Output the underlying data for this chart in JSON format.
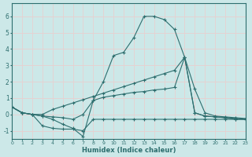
{
  "background_color": "#cce8e8",
  "grid_color": "#d0e8e8",
  "line_color": "#2d6e6e",
  "x_label": "Humidex (Indice chaleur)",
  "xlim": [
    0,
    23
  ],
  "ylim": [
    -1.5,
    6.8
  ],
  "yticks": [
    -1,
    0,
    1,
    2,
    3,
    4,
    5,
    6
  ],
  "xticks": [
    0,
    1,
    2,
    3,
    4,
    5,
    6,
    7,
    8,
    9,
    10,
    11,
    12,
    13,
    14,
    15,
    16,
    17,
    18,
    19,
    20,
    21,
    22,
    23
  ],
  "line1_x": [
    0,
    1,
    2,
    3,
    4,
    5,
    6,
    7,
    8,
    9,
    10,
    11,
    12,
    13,
    14,
    15,
    16,
    17,
    18,
    19,
    20,
    21,
    22,
    23
  ],
  "line1_y": [
    0.45,
    0.1,
    0.0,
    -0.7,
    -0.85,
    -0.9,
    -0.9,
    -1.0,
    -0.3,
    -0.3,
    -0.3,
    -0.3,
    -0.3,
    -0.3,
    -0.3,
    -0.3,
    -0.3,
    -0.3,
    -0.3,
    -0.3,
    -0.3,
    -0.3,
    -0.3,
    -0.3
  ],
  "line2_x": [
    0,
    1,
    2,
    3,
    4,
    5,
    6,
    7,
    8,
    9,
    10,
    11,
    12,
    13,
    14,
    15,
    16,
    17,
    18,
    19,
    20,
    21,
    22,
    23
  ],
  "line2_y": [
    0.45,
    0.1,
    0.0,
    -0.1,
    -0.15,
    -0.2,
    -0.3,
    0.0,
    0.85,
    1.05,
    1.15,
    1.25,
    1.35,
    1.4,
    1.5,
    1.55,
    1.65,
    3.5,
    1.55,
    0.1,
    -0.1,
    -0.15,
    -0.2,
    -0.25
  ],
  "line3_x": [
    0,
    1,
    2,
    3,
    4,
    5,
    6,
    7,
    8,
    9,
    10,
    11,
    12,
    13,
    14,
    15,
    16,
    17,
    18,
    19,
    20,
    21,
    22,
    23
  ],
  "line3_y": [
    0.45,
    0.1,
    0.0,
    0.0,
    0.3,
    0.5,
    0.7,
    0.9,
    1.1,
    1.3,
    1.5,
    1.7,
    1.9,
    2.1,
    2.3,
    2.5,
    2.7,
    3.5,
    0.1,
    -0.1,
    -0.15,
    -0.2,
    -0.25,
    -0.3
  ],
  "line4_x": [
    0,
    1,
    2,
    3,
    4,
    5,
    6,
    7,
    8,
    9,
    10,
    11,
    12,
    13,
    14,
    15,
    16,
    17,
    18,
    19,
    20,
    21,
    22,
    23
  ],
  "line4_y": [
    0.45,
    0.1,
    0.0,
    -0.1,
    -0.3,
    -0.6,
    -0.85,
    -1.35,
    0.85,
    2.0,
    3.6,
    3.8,
    4.7,
    6.0,
    6.0,
    5.8,
    5.2,
    3.5,
    0.1,
    -0.1,
    -0.15,
    -0.2,
    -0.3,
    -0.3
  ]
}
